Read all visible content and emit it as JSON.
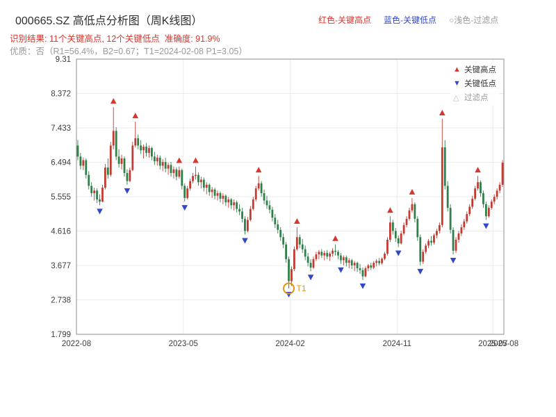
{
  "header": {
    "title": "000665.SZ 高低点分析图（周K线图）",
    "title_color": "#2f2f2f",
    "legend": [
      {
        "label": "红色-关键高点",
        "color": "#d6372e"
      },
      {
        "label": "蓝色-关键低点",
        "color": "#3348c8"
      },
      {
        "label": "○浅色-过滤点",
        "color": "#9a9a9a"
      }
    ],
    "result_line": "识别结果: 11个关键高点, 12个关键低点  准确度: 91.9%",
    "result_color": "#d6372e",
    "quality_line": "优质：否（R1=56.4%，B2=0.67；T1=2024-02-08 P1=3.05）",
    "quality_color": "#9a9a9a"
  },
  "plot_legend": [
    {
      "glyph": "▲",
      "color": "#d6372e",
      "label": "关键高点",
      "label_color": "#333333"
    },
    {
      "glyph": "▼",
      "color": "#3348c8",
      "label": "关键低点",
      "label_color": "#333333"
    },
    {
      "glyph": "△",
      "color": "#bcbcbc",
      "label": "过滤点",
      "label_color": "#9a9a9a"
    }
  ],
  "chart_data": {
    "type": "candlestick",
    "symbol": "000665.SZ",
    "period": "weekly",
    "title": "000665.SZ 高低点分析图（周K线图）",
    "key_high_count": 11,
    "key_low_count": 12,
    "accuracy_pct": 91.9,
    "premium": "否",
    "r1_pct": 56.4,
    "b2": 0.67,
    "t1_date": "2024-02-08",
    "p1": 3.05,
    "ylim": [
      1.799,
      9.31
    ],
    "yticks": [
      9.31,
      8.372,
      7.433,
      6.494,
      5.555,
      4.616,
      3.677,
      2.738,
      1.799
    ],
    "xticks": [
      {
        "label": "2022-08",
        "pos": 0
      },
      {
        "label": "2023-05",
        "pos": 39
      },
      {
        "label": "2024-02",
        "pos": 78
      },
      {
        "label": "2024-11",
        "pos": 117
      },
      {
        "label": "2025-07",
        "pos": 152
      },
      {
        "label": "2025-08",
        "pos": 156
      }
    ],
    "xdomain": 156,
    "colors": {
      "up": "#c23b33",
      "down": "#2f8048",
      "key_high": "#d6372e",
      "key_low": "#3348c8",
      "filtered": "#bcbcbc",
      "annotation": "#e5920f",
      "grid": "#ebebeb",
      "spine": "#8c8c8c",
      "tick": "#3c3c3c"
    },
    "candles": [
      [
        6.95,
        7.1,
        6.55,
        6.65
      ],
      [
        6.65,
        6.75,
        6.3,
        6.4
      ],
      [
        6.4,
        6.62,
        6.28,
        6.55
      ],
      [
        6.55,
        6.6,
        6.05,
        6.15
      ],
      [
        6.15,
        6.25,
        5.75,
        5.85
      ],
      [
        5.85,
        5.95,
        5.55,
        5.65
      ],
      [
        5.65,
        5.8,
        5.45,
        5.72
      ],
      [
        5.72,
        5.78,
        5.38,
        5.48
      ],
      [
        5.48,
        5.62,
        5.32,
        5.42
      ],
      [
        5.42,
        5.88,
        5.4,
        5.8
      ],
      [
        5.8,
        6.45,
        5.75,
        6.35
      ],
      [
        6.35,
        6.6,
        6.05,
        6.15
      ],
      [
        6.15,
        7.05,
        6.1,
        6.95
      ],
      [
        6.95,
        8.0,
        6.85,
        7.35
      ],
      [
        7.35,
        7.45,
        6.55,
        6.65
      ],
      [
        6.65,
        6.85,
        6.35,
        6.45
      ],
      [
        6.45,
        6.7,
        6.3,
        6.6
      ],
      [
        6.6,
        6.65,
        6.1,
        6.2
      ],
      [
        6.2,
        6.3,
        5.88,
        5.98
      ],
      [
        5.98,
        6.35,
        5.95,
        6.28
      ],
      [
        6.28,
        7.05,
        6.25,
        6.95
      ],
      [
        6.95,
        7.6,
        6.9,
        7.15
      ],
      [
        7.15,
        7.25,
        6.85,
        6.95
      ],
      [
        6.95,
        7.1,
        6.72,
        6.82
      ],
      [
        6.82,
        6.98,
        6.6,
        6.92
      ],
      [
        6.92,
        7.02,
        6.65,
        6.75
      ],
      [
        6.75,
        6.95,
        6.62,
        6.88
      ],
      [
        6.88,
        6.92,
        6.55,
        6.65
      ],
      [
        6.65,
        6.78,
        6.42,
        6.52
      ],
      [
        6.52,
        6.7,
        6.4,
        6.62
      ],
      [
        6.62,
        6.68,
        6.3,
        6.4
      ],
      [
        6.4,
        6.58,
        6.25,
        6.5
      ],
      [
        6.5,
        6.62,
        6.22,
        6.32
      ],
      [
        6.32,
        6.48,
        6.15,
        6.42
      ],
      [
        6.42,
        6.5,
        6.1,
        6.2
      ],
      [
        6.2,
        6.38,
        6.05,
        6.3
      ],
      [
        6.3,
        6.36,
        6.0,
        6.1
      ],
      [
        6.1,
        6.38,
        6.05,
        6.28
      ],
      [
        6.28,
        6.32,
        5.75,
        5.85
      ],
      [
        5.85,
        5.92,
        5.42,
        5.52
      ],
      [
        5.52,
        5.85,
        5.48,
        5.78
      ],
      [
        5.78,
        6.05,
        5.72,
        5.98
      ],
      [
        5.98,
        6.2,
        5.92,
        6.12
      ],
      [
        6.12,
        6.38,
        6.02,
        6.15
      ],
      [
        6.15,
        6.22,
        5.85,
        5.95
      ],
      [
        5.95,
        6.1,
        5.78,
        6.02
      ],
      [
        6.02,
        6.08,
        5.7,
        5.8
      ],
      [
        5.8,
        5.95,
        5.62,
        5.88
      ],
      [
        5.88,
        5.92,
        5.58,
        5.68
      ],
      [
        5.68,
        5.82,
        5.52,
        5.75
      ],
      [
        5.75,
        5.8,
        5.48,
        5.58
      ],
      [
        5.58,
        5.72,
        5.45,
        5.65
      ],
      [
        5.65,
        5.7,
        5.4,
        5.5
      ],
      [
        5.5,
        5.65,
        5.35,
        5.58
      ],
      [
        5.58,
        5.62,
        5.3,
        5.4
      ],
      [
        5.4,
        5.55,
        5.25,
        5.48
      ],
      [
        5.48,
        5.52,
        5.22,
        5.32
      ],
      [
        5.32,
        5.48,
        5.18,
        5.4
      ],
      [
        5.4,
        5.45,
        5.12,
        5.22
      ],
      [
        5.22,
        5.35,
        5.05,
        5.15
      ],
      [
        5.15,
        5.25,
        4.85,
        4.95
      ],
      [
        4.95,
        5.02,
        4.52,
        4.62
      ],
      [
        4.62,
        5.0,
        4.58,
        4.92
      ],
      [
        4.92,
        5.3,
        4.88,
        5.22
      ],
      [
        5.22,
        5.55,
        5.18,
        5.48
      ],
      [
        5.48,
        5.85,
        5.42,
        5.78
      ],
      [
        5.78,
        6.12,
        5.72,
        5.92
      ],
      [
        5.92,
        5.98,
        5.55,
        5.65
      ],
      [
        5.65,
        5.75,
        5.35,
        5.45
      ],
      [
        5.45,
        5.58,
        5.22,
        5.32
      ],
      [
        5.32,
        5.45,
        5.1,
        5.2
      ],
      [
        5.2,
        5.28,
        4.88,
        4.98
      ],
      [
        4.98,
        5.08,
        4.7,
        4.8
      ],
      [
        4.8,
        4.92,
        4.55,
        4.65
      ],
      [
        4.65,
        4.72,
        4.35,
        4.45
      ],
      [
        4.45,
        4.55,
        4.15,
        4.25
      ],
      [
        4.25,
        4.32,
        3.75,
        3.85
      ],
      [
        3.85,
        3.92,
        3.05,
        3.25
      ],
      [
        3.25,
        3.65,
        3.12,
        3.58
      ],
      [
        3.58,
        4.2,
        3.52,
        4.12
      ],
      [
        4.12,
        4.72,
        4.08,
        4.45
      ],
      [
        4.45,
        4.52,
        4.15,
        4.25
      ],
      [
        4.25,
        4.4,
        4.02,
        4.12
      ],
      [
        4.12,
        4.22,
        3.82,
        3.92
      ],
      [
        3.92,
        4.02,
        3.65,
        3.75
      ],
      [
        3.75,
        3.85,
        3.52,
        3.62
      ],
      [
        3.62,
        3.92,
        3.58,
        3.85
      ],
      [
        3.85,
        4.05,
        3.8,
        3.98
      ],
      [
        3.98,
        4.1,
        3.85,
        4.05
      ],
      [
        4.05,
        4.12,
        3.88,
        3.95
      ],
      [
        3.95,
        4.08,
        3.82,
        4.02
      ],
      [
        4.02,
        4.1,
        3.85,
        3.92
      ],
      [
        3.92,
        4.05,
        3.8,
        4.0
      ],
      [
        4.0,
        4.15,
        3.92,
        4.08
      ],
      [
        4.08,
        4.25,
        3.95,
        4.05
      ],
      [
        4.05,
        4.1,
        3.85,
        3.95
      ],
      [
        3.95,
        4.02,
        3.72,
        3.82
      ],
      [
        3.82,
        3.95,
        3.68,
        3.9
      ],
      [
        3.9,
        3.95,
        3.65,
        3.75
      ],
      [
        3.75,
        3.88,
        3.6,
        3.82
      ],
      [
        3.82,
        3.86,
        3.58,
        3.68
      ],
      [
        3.68,
        3.8,
        3.52,
        3.75
      ],
      [
        3.75,
        3.78,
        3.5,
        3.6
      ],
      [
        3.6,
        3.72,
        3.45,
        3.55
      ],
      [
        3.55,
        3.62,
        3.28,
        3.38
      ],
      [
        3.38,
        3.65,
        3.35,
        3.6
      ],
      [
        3.6,
        3.72,
        3.52,
        3.68
      ],
      [
        3.68,
        3.75,
        3.55,
        3.62
      ],
      [
        3.62,
        3.8,
        3.58,
        3.75
      ],
      [
        3.75,
        3.85,
        3.65,
        3.8
      ],
      [
        3.8,
        3.88,
        3.68,
        3.74
      ],
      [
        3.74,
        3.9,
        3.7,
        3.86
      ],
      [
        3.86,
        4.05,
        3.82,
        4.0
      ],
      [
        4.0,
        4.45,
        3.95,
        4.38
      ],
      [
        4.38,
        5.02,
        4.32,
        4.85
      ],
      [
        4.85,
        4.92,
        4.52,
        4.62
      ],
      [
        4.62,
        4.7,
        4.32,
        4.42
      ],
      [
        4.42,
        4.5,
        4.18,
        4.28
      ],
      [
        4.28,
        4.62,
        4.25,
        4.55
      ],
      [
        4.55,
        4.85,
        4.5,
        4.78
      ],
      [
        4.78,
        5.02,
        4.72,
        4.95
      ],
      [
        4.95,
        5.25,
        4.9,
        5.18
      ],
      [
        5.18,
        5.52,
        5.12,
        5.35
      ],
      [
        5.35,
        5.4,
        4.85,
        4.95
      ],
      [
        4.95,
        5.02,
        4.35,
        4.45
      ],
      [
        4.45,
        4.52,
        3.68,
        3.78
      ],
      [
        3.78,
        4.12,
        3.72,
        4.05
      ],
      [
        4.05,
        4.28,
        4.0,
        4.22
      ],
      [
        4.22,
        4.4,
        4.15,
        4.35
      ],
      [
        4.35,
        4.48,
        4.22,
        4.3
      ],
      [
        4.3,
        4.55,
        4.25,
        4.5
      ],
      [
        4.5,
        4.68,
        4.42,
        4.62
      ],
      [
        4.62,
        4.85,
        4.55,
        4.78
      ],
      [
        4.78,
        7.68,
        4.72,
        6.9
      ],
      [
        6.9,
        7.1,
        5.75,
        5.85
      ],
      [
        5.85,
        5.98,
        5.15,
        5.25
      ],
      [
        5.25,
        5.35,
        4.55,
        4.65
      ],
      [
        4.65,
        4.72,
        3.98,
        4.08
      ],
      [
        4.08,
        4.45,
        4.02,
        4.38
      ],
      [
        4.38,
        4.62,
        4.3,
        4.55
      ],
      [
        4.55,
        4.8,
        4.48,
        4.72
      ],
      [
        4.72,
        4.95,
        4.65,
        4.88
      ],
      [
        4.88,
        5.15,
        4.82,
        5.08
      ],
      [
        5.08,
        5.35,
        5.02,
        5.28
      ],
      [
        5.28,
        5.58,
        5.22,
        5.5
      ],
      [
        5.5,
        5.85,
        5.45,
        5.78
      ],
      [
        5.78,
        6.12,
        5.72,
        5.95
      ],
      [
        5.95,
        6.0,
        5.55,
        5.65
      ],
      [
        5.65,
        5.72,
        5.25,
        5.35
      ],
      [
        5.35,
        5.42,
        4.92,
        5.02
      ],
      [
        5.02,
        5.32,
        4.98,
        5.25
      ],
      [
        5.25,
        5.48,
        5.2,
        5.42
      ],
      [
        5.42,
        5.62,
        5.35,
        5.55
      ],
      [
        5.55,
        5.78,
        5.48,
        5.72
      ],
      [
        5.72,
        5.95,
        5.65,
        5.88
      ],
      [
        5.88,
        6.55,
        5.82,
        6.48
      ]
    ],
    "key_highs": [
      [
        13,
        8.0
      ],
      [
        21,
        7.6
      ],
      [
        37,
        6.38
      ],
      [
        43,
        6.38
      ],
      [
        66,
        6.12
      ],
      [
        80,
        4.72
      ],
      [
        94,
        4.25
      ],
      [
        114,
        5.02
      ],
      [
        122,
        5.52
      ],
      [
        133,
        7.68
      ],
      [
        146,
        6.12
      ]
    ],
    "key_lows": [
      [
        8,
        5.32
      ],
      [
        18,
        5.88
      ],
      [
        39,
        5.42
      ],
      [
        61,
        4.52
      ],
      [
        77,
        3.05
      ],
      [
        85,
        3.52
      ],
      [
        96,
        3.72
      ],
      [
        104,
        3.28
      ],
      [
        117,
        4.18
      ],
      [
        125,
        3.68
      ],
      [
        137,
        3.98
      ],
      [
        149,
        4.92
      ]
    ],
    "annotation": {
      "label": "T1",
      "week": 77,
      "price": 3.05
    }
  }
}
